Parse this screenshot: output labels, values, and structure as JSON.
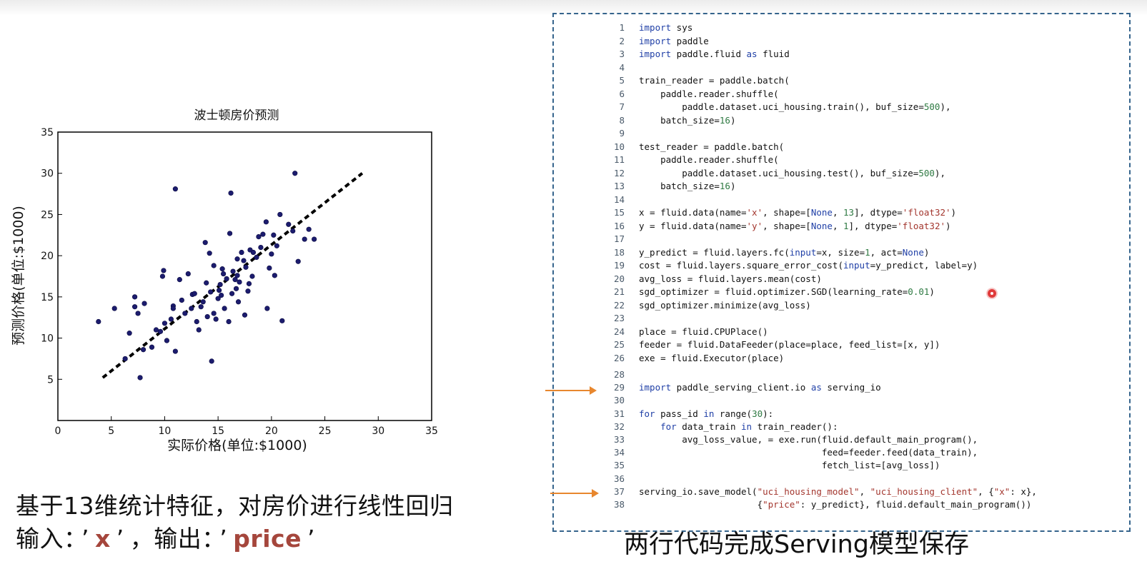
{
  "chart_data": {
    "type": "scatter",
    "title": "波士顿房价预测",
    "xlabel": "实际价格(单位:$1000)",
    "ylabel": "预测价格(单位:$1000)",
    "xlim": [
      0,
      35
    ],
    "ylim": [
      0,
      35
    ],
    "xticks": [
      "0",
      "5",
      "10",
      "15",
      "20",
      "25",
      "30",
      "35"
    ],
    "yticks": [
      "5",
      "10",
      "15",
      "20",
      "25",
      "30",
      "35"
    ],
    "grid": false,
    "points": [
      [
        3.8,
        12.0
      ],
      [
        5.3,
        13.6
      ],
      [
        6.3,
        7.5
      ],
      [
        6.7,
        10.6
      ],
      [
        7.2,
        15.0
      ],
      [
        7.2,
        13.8
      ],
      [
        7.5,
        13.0
      ],
      [
        7.7,
        5.2
      ],
      [
        8.1,
        14.2
      ],
      [
        8.0,
        8.6
      ],
      [
        8.8,
        8.9
      ],
      [
        9.2,
        11.0
      ],
      [
        9.6,
        10.8
      ],
      [
        9.8,
        17.5
      ],
      [
        9.9,
        18.2
      ],
      [
        10.0,
        11.8
      ],
      [
        10.2,
        9.7
      ],
      [
        10.6,
        12.3
      ],
      [
        10.8,
        13.9
      ],
      [
        10.8,
        13.6
      ],
      [
        11.0,
        28.1
      ],
      [
        11.0,
        8.4
      ],
      [
        11.6,
        14.6
      ],
      [
        11.9,
        13.0
      ],
      [
        12.2,
        17.8
      ],
      [
        12.5,
        13.6
      ],
      [
        12.6,
        15.3
      ],
      [
        12.8,
        15.4
      ],
      [
        13.0,
        12.0
      ],
      [
        13.2,
        11.0
      ],
      [
        13.4,
        13.8
      ],
      [
        13.6,
        14.4
      ],
      [
        13.8,
        21.6
      ],
      [
        13.9,
        16.7
      ],
      [
        14.0,
        12.6
      ],
      [
        14.2,
        20.3
      ],
      [
        14.3,
        15.6
      ],
      [
        14.4,
        7.2
      ],
      [
        14.6,
        13.0
      ],
      [
        14.8,
        12.3
      ],
      [
        15.0,
        14.8
      ],
      [
        15.2,
        16.5
      ],
      [
        15.3,
        15.2
      ],
      [
        15.5,
        17.8
      ],
      [
        15.6,
        13.6
      ],
      [
        15.8,
        17.2
      ],
      [
        16.0,
        12.0
      ],
      [
        16.1,
        22.7
      ],
      [
        16.2,
        27.6
      ],
      [
        16.3,
        15.4
      ],
      [
        16.4,
        18.1
      ],
      [
        16.6,
        17.1
      ],
      [
        16.7,
        16.0
      ],
      [
        16.8,
        19.6
      ],
      [
        16.9,
        14.4
      ],
      [
        17.0,
        16.8
      ],
      [
        17.2,
        20.4
      ],
      [
        17.4,
        19.4
      ],
      [
        17.5,
        12.8
      ],
      [
        17.6,
        18.6
      ],
      [
        17.8,
        15.7
      ],
      [
        18.0,
        20.7
      ],
      [
        18.2,
        17.5
      ],
      [
        18.3,
        20.4
      ],
      [
        18.6,
        19.8
      ],
      [
        18.8,
        22.3
      ],
      [
        19.0,
        21.0
      ],
      [
        19.2,
        22.6
      ],
      [
        19.5,
        24.1
      ],
      [
        19.6,
        13.6
      ],
      [
        19.8,
        18.5
      ],
      [
        20.0,
        20.2
      ],
      [
        20.3,
        17.6
      ],
      [
        20.5,
        21.2
      ],
      [
        20.8,
        25.0
      ],
      [
        21.0,
        12.1
      ],
      [
        21.6,
        23.8
      ],
      [
        22.0,
        23.0
      ],
      [
        22.2,
        30.0
      ],
      [
        22.5,
        19.3
      ],
      [
        23.1,
        22.0
      ],
      [
        23.5,
        23.2
      ],
      [
        24.0,
        22.0
      ],
      [
        11.4,
        17.1
      ],
      [
        15.1,
        15.8
      ],
      [
        16.8,
        17.6
      ],
      [
        17.9,
        16.6
      ],
      [
        14.6,
        18.8
      ],
      [
        20.2,
        22.5
      ],
      [
        15.4,
        18.4
      ]
    ],
    "fit_line": [
      [
        4.2,
        5.2
      ],
      [
        28.5,
        30.0
      ]
    ],
    "marker_color": "#1c1c6e",
    "line_style": "dashed black"
  },
  "caption": {
    "line1": "基于13维统计特征，对房价进行线性回归",
    "line2_prefix": "输入：",
    "quote_open": "’",
    "input_name": "x",
    "quote_close": "’",
    "line2_mid": "，输出：",
    "output_name": "price"
  },
  "code_panel": {
    "lines": [
      {
        "n": "1",
        "html": "<span class='kw'>import</span> sys"
      },
      {
        "n": "2",
        "html": "<span class='kw'>import</span> paddle"
      },
      {
        "n": "3",
        "html": "<span class='kw'>import</span> paddle.fluid <span class='kw'>as</span> fluid"
      },
      {
        "n": "4",
        "html": ""
      },
      {
        "n": "5",
        "html": "train_reader = paddle.batch("
      },
      {
        "n": "6",
        "html": "    paddle.reader.shuffle("
      },
      {
        "n": "7",
        "html": "        paddle.dataset.uci_housing.train(), buf_size=<span class='num'>500</span>),"
      },
      {
        "n": "8",
        "html": "    batch_size=<span class='num'>16</span>)"
      },
      {
        "n": "9",
        "html": ""
      },
      {
        "n": "10",
        "html": "test_reader = paddle.batch("
      },
      {
        "n": "11",
        "html": "    paddle.reader.shuffle("
      },
      {
        "n": "12",
        "html": "        paddle.dataset.uci_housing.test(), buf_size=<span class='num'>500</span>),"
      },
      {
        "n": "13",
        "html": "    batch_size=<span class='num'>16</span>)"
      },
      {
        "n": "14",
        "html": ""
      },
      {
        "n": "15",
        "html": "x = fluid.data(name=<span class='str'>'x'</span>, shape=[<span class='kw'>None</span>, <span class='num'>13</span>], dtype=<span class='str'>'float32'</span>)"
      },
      {
        "n": "16",
        "html": "y = fluid.data(name=<span class='str'>'y'</span>, shape=[<span class='kw'>None</span>, <span class='num'>1</span>], dtype=<span class='str'>'float32'</span>)"
      },
      {
        "n": "17",
        "html": ""
      },
      {
        "n": "18",
        "html": "y_predict = fluid.layers.fc(<span class='kw'>input</span>=x, size=<span class='num'>1</span>, act=<span class='kw'>None</span>)"
      },
      {
        "n": "19",
        "html": "cost = fluid.layers.square_error_cost(<span class='kw'>input</span>=y_predict, label=y)"
      },
      {
        "n": "20",
        "html": "avg_loss = fluid.layers.mean(cost)"
      },
      {
        "n": "21",
        "html": "sgd_optimizer = fluid.optimizer.SGD(learning_rate=<span class='num'>0.01</span>)"
      },
      {
        "n": "22",
        "html": "sgd_optimizer.minimize(avg_loss)"
      },
      {
        "n": "23",
        "html": ""
      },
      {
        "n": "24",
        "html": "place = fluid.CPUPlace()"
      },
      {
        "n": "25",
        "html": "feeder = fluid.DataFeeder(place=place, feed_list=[x, y])"
      },
      {
        "n": "26",
        "html": "exe = fluid.Executor(place)"
      },
      {
        "n": "28",
        "html": ""
      },
      {
        "n": "29",
        "html": "<span class='kw'>import</span> paddle_serving_client.io <span class='kw'>as</span> serving_io"
      },
      {
        "n": "30",
        "html": ""
      },
      {
        "n": "31",
        "html": "<span class='kw'>for</span> pass_id <span class='kw'>in</span> range(<span class='num'>30</span>):"
      },
      {
        "n": "32",
        "html": "    <span class='kw'>for</span> data_train <span class='kw'>in</span> train_reader():"
      },
      {
        "n": "33",
        "html": "        avg_loss_value, = exe.run(fluid.default_main_program(),"
      },
      {
        "n": "34",
        "html": "                                  feed=feeder.feed(data_train),"
      },
      {
        "n": "35",
        "html": "                                  fetch_list=[avg_loss])"
      },
      {
        "n": "36",
        "html": ""
      },
      {
        "n": "37",
        "html": "serving_io.save_model(<span class='str'>\"uci_housing_model\"</span>, <span class='str'>\"uci_housing_client\"</span>, {<span class='str'>\"x\"</span>: x},"
      },
      {
        "n": "38",
        "html": "                      {<span class='str'>\"price\"</span>: y_predict}, fluid.default_main_program())"
      }
    ]
  },
  "bottom_caption": "两行代码完成Serving模型保存",
  "colors": {
    "accent_highlight": "#a5463c",
    "panel_border": "#35648c",
    "arrow": "#e8872e",
    "keyword": "#1f3fa6",
    "string": "#a3362e",
    "number": "#2f7a43"
  }
}
